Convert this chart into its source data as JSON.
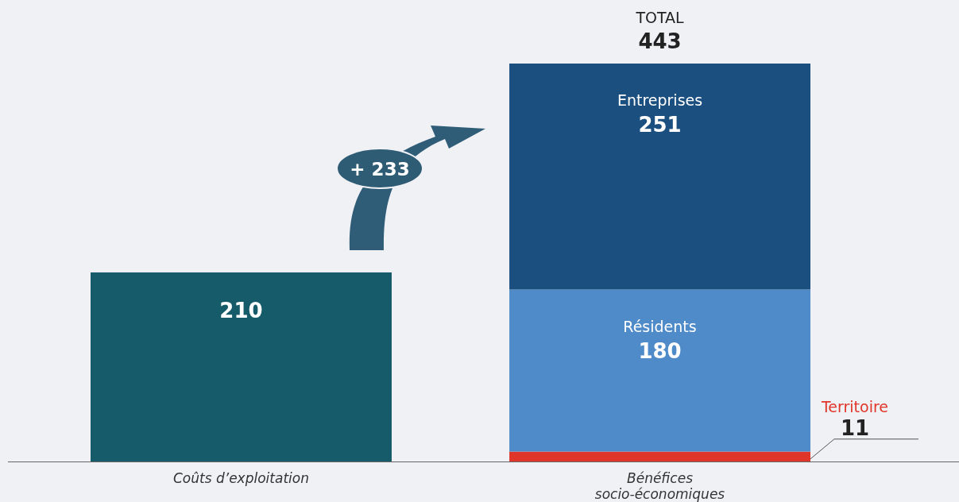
{
  "chart_data": {
    "type": "bar",
    "stacked": true,
    "categories": [
      "Coûts d’exploitation",
      "Bénéfices socio-économiques"
    ],
    "series": [
      {
        "color": "#165b69",
        "values": [
          210,
          null
        ]
      },
      {
        "name": "Territoire",
        "color": "#e0362a",
        "values": [
          null,
          11
        ]
      },
      {
        "name": "Résidents",
        "color": "#4f8bc9",
        "values": [
          null,
          180
        ]
      },
      {
        "name": "Entreprises",
        "color": "#1b4f80",
        "values": [
          null,
          251
        ]
      }
    ],
    "data_labels": true,
    "totals": [
      null,
      "443"
    ],
    "legend": false,
    "grid": false,
    "annotations": [
      "TOTAL",
      "+ 233"
    ]
  }
}
